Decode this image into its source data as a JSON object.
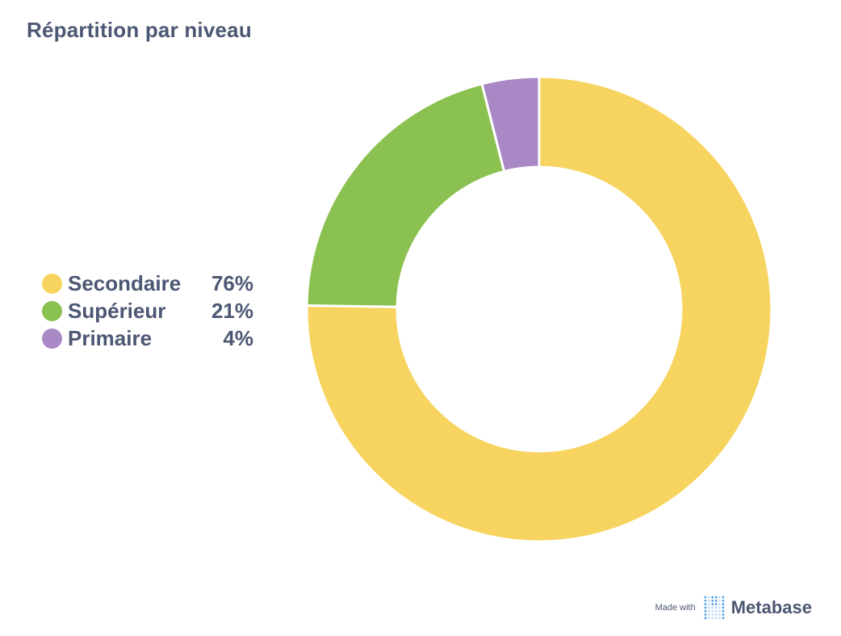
{
  "title": "Répartition par niveau",
  "chart_data": {
    "type": "pie",
    "donut": true,
    "categories": [
      "Secondaire",
      "Supérieur",
      "Primaire"
    ],
    "values": [
      76,
      21,
      4
    ],
    "value_labels": [
      "76%",
      "21%",
      "4%"
    ],
    "colors": [
      "#F7D45F",
      "#8BC151",
      "#A989C5"
    ],
    "legend_position": "left"
  },
  "footer": {
    "made_with": "Made with",
    "brand": "Metabase",
    "logo_icon": "metabase-logo-icon"
  }
}
